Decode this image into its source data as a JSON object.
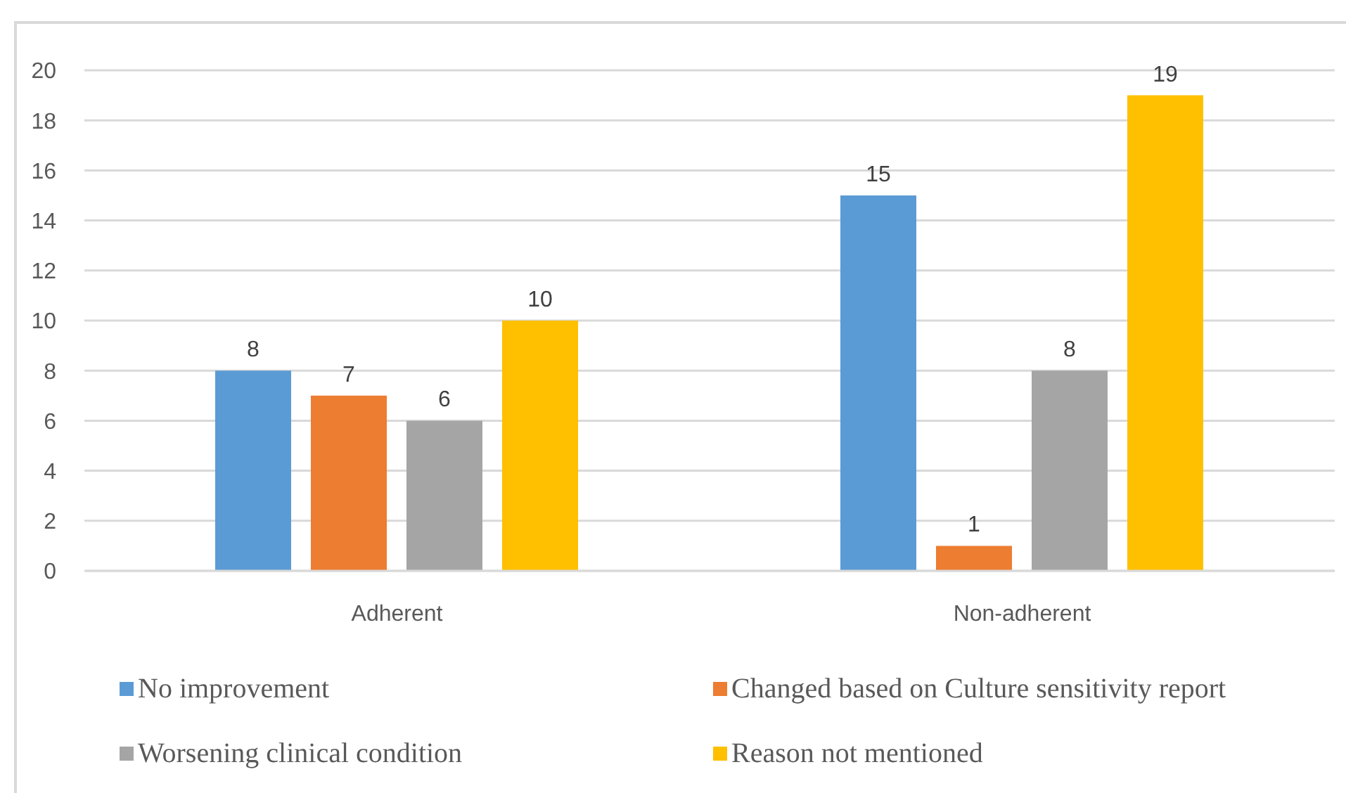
{
  "chart_data": {
    "type": "bar",
    "categories": [
      "Adherent",
      "Non-adherent"
    ],
    "series": [
      {
        "name": "No improvement",
        "color": "#5b9bd5",
        "values": [
          8,
          15
        ]
      },
      {
        "name": "Changed based on Culture sensitivity report",
        "color": "#ed7d31",
        "values": [
          7,
          1
        ]
      },
      {
        "name": "Worsening clinical condition",
        "color": "#a5a5a5",
        "values": [
          6,
          8
        ]
      },
      {
        "name": "Reason not mentioned",
        "color": "#ffc000",
        "values": [
          10,
          19
        ]
      }
    ],
    "ylim": [
      0,
      20
    ],
    "yticks": [
      0,
      2,
      4,
      6,
      8,
      10,
      12,
      14,
      16,
      18,
      20
    ],
    "grid": "y",
    "legend": "bottom",
    "data_labels": true
  }
}
